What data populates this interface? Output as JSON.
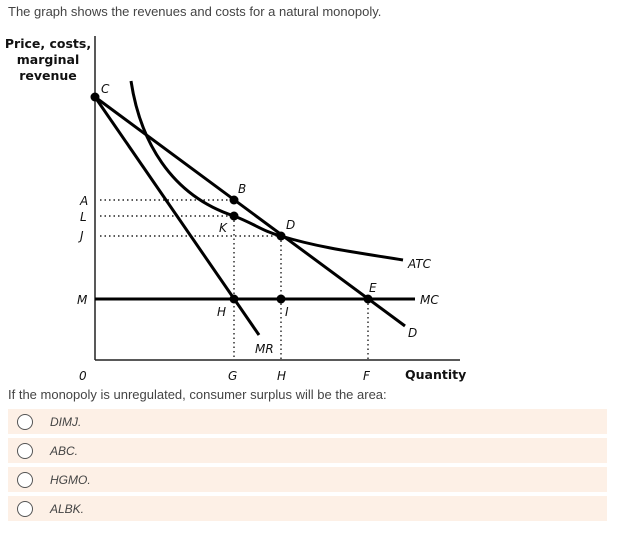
{
  "intro": "The graph shows the revenues and costs for a natural monopoly.",
  "diagram": {
    "y_axis_label": [
      "Price, costs,",
      "marginal",
      "revenue"
    ],
    "x_axis_label": "Quantity",
    "y_ticks": {
      "A": "A",
      "L": "L",
      "J": "J",
      "M": "M"
    },
    "x_ticks": {
      "O": "0",
      "G": "G",
      "H": "H",
      "F": "F"
    },
    "points": {
      "C": "C",
      "B": "B",
      "K": "K",
      "D": "D",
      "H": "H",
      "I": "I",
      "E": "E"
    },
    "curves": {
      "ATC": "ATC",
      "MC": "MC",
      "D": "D",
      "MR": "MR"
    }
  },
  "question": "If the monopoly is unregulated, consumer surplus will be the area:",
  "options": [
    {
      "label": "DIMJ."
    },
    {
      "label": "ABC."
    },
    {
      "label": "HGMO."
    },
    {
      "label": "ALBK."
    }
  ]
}
